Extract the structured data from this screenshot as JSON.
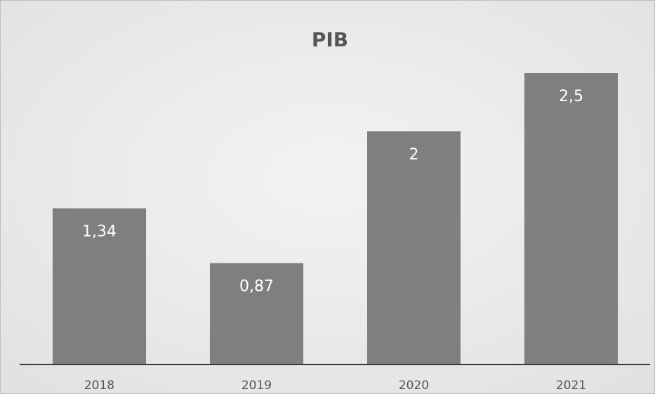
{
  "chart_data": {
    "type": "bar",
    "title": "PIB",
    "categories": [
      "2018",
      "2019",
      "2020",
      "2021"
    ],
    "values": [
      1.34,
      0.87,
      2,
      2.5
    ],
    "value_labels": [
      "1,34",
      "0,87",
      "2",
      "2,5"
    ],
    "color": "#7f7f7f"
  }
}
